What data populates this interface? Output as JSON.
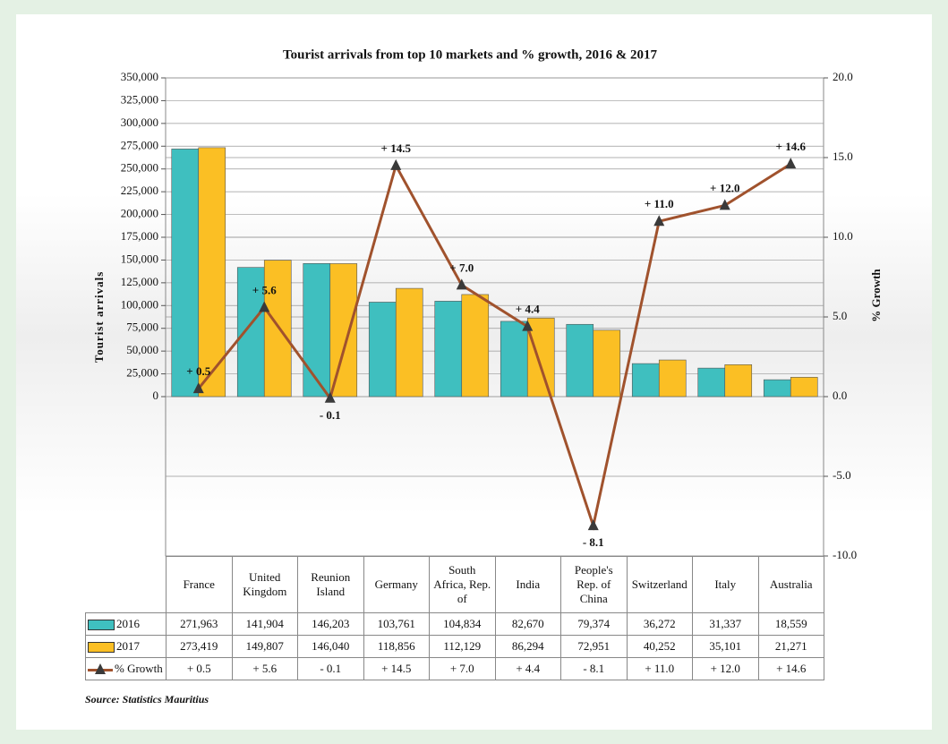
{
  "chart_data": {
    "type": "bar-line",
    "title": "Tourist arrivals  from top 10 markets and % growth,  2016 & 2017",
    "ylabel": "Tourist  arrivals",
    "y2label": "% Growth",
    "source": "Source: Statistics Mauritius",
    "categories": [
      "France",
      "United Kingdom",
      "Reunion Island",
      "Germany",
      "South Africa, Rep. of",
      "India",
      "People's Rep. of China",
      "Switzerland",
      "Italy",
      "Australia"
    ],
    "series": [
      {
        "name": "2016",
        "type": "bar",
        "color": "#3fbfbf",
        "values": [
          271963,
          141904,
          146203,
          103761,
          104834,
          82670,
          79374,
          36272,
          31337,
          18559
        ],
        "value_labels": [
          "271,963",
          "141,904",
          "146,203",
          "103,761",
          "104,834",
          "82,670",
          "79,374",
          "36,272",
          "31,337",
          "18,559"
        ]
      },
      {
        "name": "2017",
        "type": "bar",
        "color": "#fbbf24",
        "values": [
          273419,
          149807,
          146040,
          118856,
          112129,
          86294,
          72951,
          40252,
          35101,
          21271
        ],
        "value_labels": [
          "273,419",
          "149,807",
          "146,040",
          "118,856",
          "112,129",
          "86,294",
          "72,951",
          "40,252",
          "35,101",
          "21,271"
        ]
      },
      {
        "name": "% Growth",
        "type": "line",
        "axis": "y2",
        "color": "#a0522d",
        "marker_color": "#3a3a3a",
        "values": [
          0.5,
          5.6,
          -0.1,
          14.5,
          7.0,
          4.4,
          -8.1,
          11.0,
          12.0,
          14.6
        ],
        "value_labels": [
          "+ 0.5",
          "+ 5.6",
          "- 0.1",
          "+ 14.5",
          "+ 7.0",
          "+ 4.4",
          "- 8.1",
          "+ 11.0",
          "+ 12.0",
          "+ 14.6"
        ]
      }
    ],
    "ylim": [
      -175000,
      350000
    ],
    "yticks": [
      0,
      {
        "value": 25000,
        "label": "25,000"
      },
      {
        "value": 50000,
        "label": "50,000"
      },
      {
        "value": 75000,
        "label": "75,000"
      },
      {
        "value": 100000,
        "label": "100,000"
      },
      {
        "value": 125000,
        "label": "125,000"
      },
      {
        "value": 150000,
        "label": "150,000"
      },
      {
        "value": 175000,
        "label": "175,000"
      },
      {
        "value": 200000,
        "label": "200,000"
      },
      {
        "value": 225000,
        "label": "225,000"
      },
      {
        "value": 250000,
        "label": "250,000"
      },
      {
        "value": 275000,
        "label": "275,000"
      },
      {
        "value": 300000,
        "label": "300,000"
      },
      {
        "value": 325000,
        "label": "325,000"
      },
      {
        "value": 350000,
        "label": "350,000"
      }
    ],
    "y2lim": [
      -10,
      20
    ],
    "y2ticks": [
      {
        "value": -10,
        "label": "-10.0"
      },
      {
        "value": -5,
        "label": "-5.0"
      },
      {
        "value": 0,
        "label": "0.0"
      },
      {
        "value": 5,
        "label": "5.0"
      },
      {
        "value": 10,
        "label": "10.0"
      },
      {
        "value": 15,
        "label": "15.0"
      },
      {
        "value": 20,
        "label": "20.0"
      }
    ],
    "grid": true
  }
}
